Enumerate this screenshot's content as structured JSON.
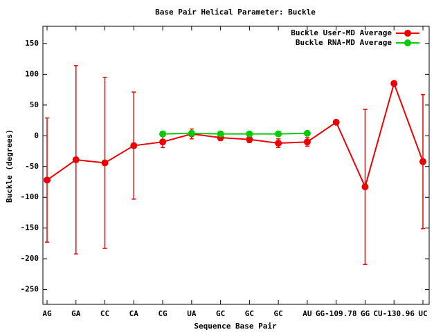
{
  "chart_data": {
    "type": "line",
    "title": "Base Pair Helical Parameter: Buckle",
    "x_label": "Sequence Base Pair",
    "y_label": "Buckle (degrees)",
    "categories": [
      "AG",
      "GA",
      "CC",
      "CA",
      "CG",
      "UA",
      "GC",
      "GC",
      "GC",
      "AU",
      "GG-109.78",
      "GG",
      "CU-130.96",
      "UC"
    ],
    "series": [
      {
        "name": "Buckle User-MD Average",
        "color": "#ee0000",
        "values": [
          -72,
          -39,
          -44,
          -16,
          -10,
          3,
          -3,
          -6,
          -12,
          -10,
          22,
          -83,
          85,
          -42
        ],
        "errors": [
          101,
          153,
          139,
          87,
          9,
          8,
          5,
          5,
          7,
          7,
          2,
          126,
          2,
          109
        ]
      },
      {
        "name": "Buckle RNA-MD Average",
        "color": "#00cc00",
        "values": [
          null,
          null,
          null,
          null,
          3,
          4,
          3,
          3,
          3,
          4,
          null,
          null,
          null,
          null
        ]
      }
    ],
    "ylim": [
      -274,
      178
    ],
    "yticks": [
      -250,
      -200,
      -150,
      -100,
      -50,
      0,
      50,
      100,
      150
    ],
    "legend": "upper right"
  }
}
